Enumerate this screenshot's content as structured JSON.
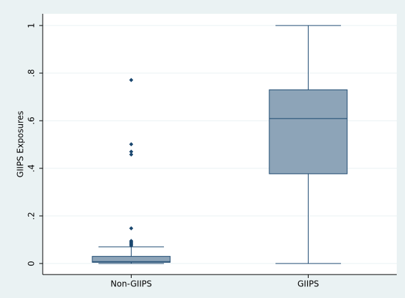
{
  "chart_data": {
    "type": "box",
    "y_label": "GIIPS Exposures",
    "categories": [
      "Non-GIIPS",
      "GIIPS"
    ],
    "boxes": [
      {
        "min": 0,
        "q1": 0.005,
        "median": 0.008,
        "q3": 0.03,
        "max": 0.07,
        "outliers": [
          0.075,
          0.08,
          0.085,
          0.09,
          0.095,
          0.148,
          0.458,
          0.47,
          0.501,
          0.771
        ]
      },
      {
        "min": 0,
        "q1": 0.377,
        "median": 0.609,
        "q3": 0.73,
        "max": 1,
        "outliers": []
      }
    ],
    "color": "#8da4b8",
    "line_color": "#1a476f",
    "ylim": [
      0,
      1
    ],
    "yticks": [
      0,
      {
        "value": 0.2,
        "label": ".2"
      },
      {
        "value": 0.4,
        "label": ".4"
      },
      {
        "value": 0.6,
        "label": ".6"
      },
      {
        "value": 0.8,
        "label": ".8"
      },
      1
    ],
    "grid": true
  }
}
